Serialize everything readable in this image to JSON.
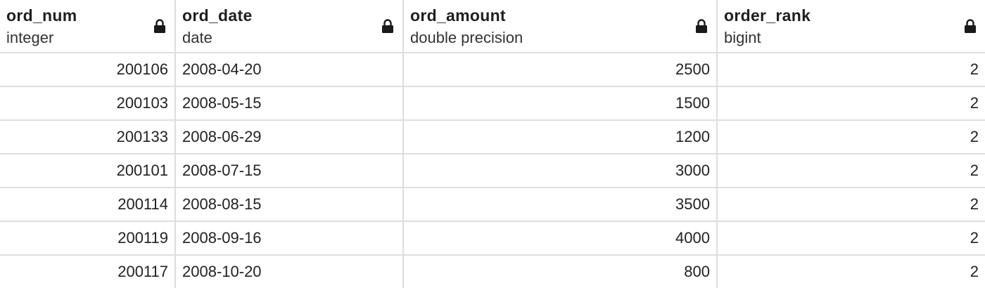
{
  "columns": [
    {
      "name": "ord_num",
      "type": "integer",
      "icon": "lock-icon"
    },
    {
      "name": "ord_date",
      "type": "date",
      "icon": "lock-icon"
    },
    {
      "name": "ord_amount",
      "type": "double precision",
      "icon": "lock-icon"
    },
    {
      "name": "order_rank",
      "type": "bigint",
      "icon": "lock-icon"
    }
  ],
  "rows": [
    [
      "200106",
      "2008-04-20",
      "2500",
      "2"
    ],
    [
      "200103",
      "2008-05-15",
      "1500",
      "2"
    ],
    [
      "200133",
      "2008-06-29",
      "1200",
      "2"
    ],
    [
      "200101",
      "2008-07-15",
      "3000",
      "2"
    ],
    [
      "200114",
      "2008-08-15",
      "3500",
      "2"
    ],
    [
      "200119",
      "2008-09-16",
      "4000",
      "2"
    ],
    [
      "200117",
      "2008-10-20",
      "800",
      "2"
    ]
  ]
}
